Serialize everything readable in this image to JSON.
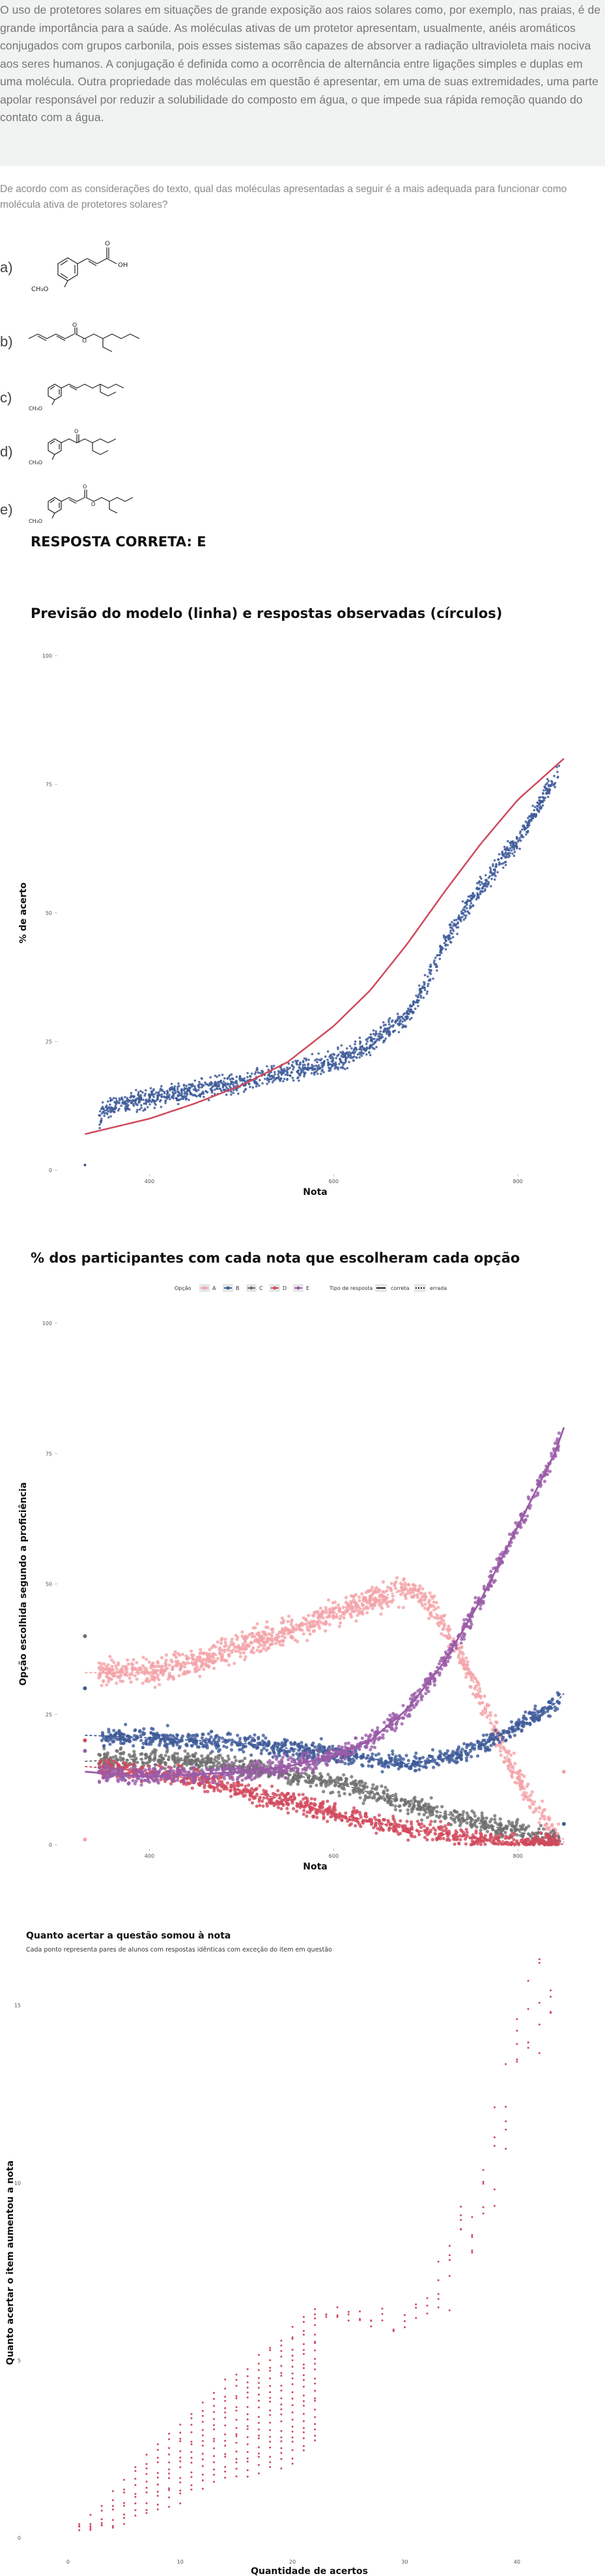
{
  "intro_text": "O uso de protetores solares em situações de grande exposição aos raios solares como, por exemplo, nas praias, é de grande importância para a saúde. As moléculas ativas de um protetor apresentam, usualmente, anéis aromáticos conjugados com grupos carbonila, pois esses sistemas são capazes de absorver a radiação ultravioleta mais nociva aos seres humanos. A conjugação é definida como a ocorrência de alternância entre ligações simples e duplas em uma molécula. Outra propriedade das moléculas em questão é apresentar, em uma de suas extremidades, uma parte apolar responsável por reduzir a solubilidade do composto em água, o que impede sua rápida remoção quando do contato com a água.",
  "question_text": "De acordo com as considerações do texto, qual das moléculas apresentadas a seguir é a mais adequada para funcionar como molécula ativa de protetores solares?",
  "options": [
    {
      "letter": "a)",
      "groups": [
        "CH₃O",
        "OH",
        "O"
      ]
    },
    {
      "letter": "b)",
      "groups": [
        "O",
        "O"
      ]
    },
    {
      "letter": "c)",
      "groups": [
        "CH₃O"
      ]
    },
    {
      "letter": "d)",
      "groups": [
        "CH₃O",
        "O"
      ]
    },
    {
      "letter": "e)",
      "groups": [
        "CH₃O",
        "O",
        "O"
      ]
    }
  ],
  "answer_label": "RESPOSTA CORRETA: E",
  "chart_data": [
    {
      "type": "scatter",
      "title": "Previsão do modelo (linha) e respostas observadas (círculos)",
      "xlabel": "Nota",
      "ylabel": "% de acerto",
      "xlim": [
        300,
        860
      ],
      "ylim": [
        0,
        100
      ],
      "x_ticks": [
        "400",
        "600",
        "800"
      ],
      "y_ticks": [
        "0",
        "25",
        "50",
        "75",
        "100"
      ],
      "series": [
        {
          "role": "model",
          "style": "line",
          "color": "#d1495b",
          "x": [
            330,
            400,
            450,
            500,
            550,
            600,
            640,
            680,
            720,
            760,
            800,
            850
          ],
          "y": [
            7,
            10,
            13,
            16.5,
            21,
            28,
            35,
            44,
            54,
            63.5,
            72,
            80
          ]
        },
        {
          "role": "observed",
          "style": "points",
          "color": "#3d5a99",
          "x": [
            330,
            350,
            400,
            450,
            500,
            550,
            600,
            640,
            680,
            700,
            720,
            740,
            760,
            780,
            800,
            820,
            840,
            850
          ],
          "y": [
            1,
            12,
            14,
            15.5,
            17,
            19,
            21,
            24.5,
            30,
            36,
            44,
            50,
            55,
            60,
            64,
            70,
            76,
            80
          ]
        }
      ]
    },
    {
      "type": "scatter",
      "title": "% dos participantes com cada nota que escolheram cada opção",
      "xlabel": "Nota",
      "ylabel": "Opção escolhida segundo a proficiência",
      "xlim": [
        300,
        860
      ],
      "ylim": [
        0,
        100
      ],
      "x_ticks": [
        "400",
        "600",
        "800"
      ],
      "y_ticks": [
        "0",
        "25",
        "50",
        "75",
        "100"
      ],
      "legend_option_title": "Opção",
      "legend_type_title": "Tipo de resposta",
      "legend_type_labels": [
        "correta",
        "errada"
      ],
      "legend_position": "top",
      "series": [
        {
          "name": "A",
          "color": "#f4a3a8",
          "x": [
            330,
            400,
            450,
            500,
            550,
            600,
            640,
            680,
            700,
            720,
            740,
            760,
            780,
            800,
            820,
            840,
            850
          ],
          "y": [
            33,
            33,
            35,
            38,
            41,
            44,
            47,
            49,
            47,
            42,
            36,
            28,
            20,
            13,
            7,
            2,
            1
          ]
        },
        {
          "name": "B",
          "color": "#3d5a99",
          "x": [
            330,
            400,
            450,
            500,
            550,
            600,
            640,
            680,
            720,
            760,
            800,
            840,
            850
          ],
          "y": [
            21,
            20.5,
            20,
            19.5,
            18.5,
            17.5,
            16.5,
            15.5,
            16.5,
            19,
            23,
            27,
            29
          ]
        },
        {
          "name": "C",
          "color": "#6e6e6e",
          "x": [
            330,
            400,
            450,
            500,
            550,
            600,
            640,
            680,
            720,
            760,
            800,
            840,
            850
          ],
          "y": [
            16,
            16.5,
            16,
            15,
            13.5,
            12,
            10,
            8,
            6,
            4,
            2.5,
            1,
            0.5
          ]
        },
        {
          "name": "D",
          "color": "#d1495b",
          "x": [
            330,
            400,
            450,
            500,
            550,
            600,
            640,
            680,
            720,
            760,
            800,
            840,
            850
          ],
          "y": [
            15,
            14,
            12.5,
            10.5,
            8.5,
            6,
            4.5,
            3,
            2,
            1,
            0.5,
            0.2,
            0.1
          ]
        },
        {
          "name": "E",
          "color": "#9a5ba8",
          "x": [
            330,
            400,
            450,
            500,
            550,
            600,
            640,
            680,
            720,
            760,
            800,
            840,
            850
          ],
          "y": [
            14,
            13,
            13.5,
            14,
            15,
            17,
            20,
            26,
            35,
            47,
            61,
            75,
            80
          ]
        }
      ]
    },
    {
      "type": "scatter",
      "title": "Quanto acertar a questão somou à nota",
      "subtitle": "Cada ponto representa pares de alunos com respostas idênticas com exceção do item em questão",
      "xlabel": "Quantidade de acertos",
      "ylabel": "Quanto acertar o item aumentou a nota",
      "xlim": [
        -2,
        45
      ],
      "ylim": [
        -0.5,
        16
      ],
      "x_ticks": [
        "0",
        "10",
        "20",
        "30",
        "40"
      ],
      "y_ticks": [
        "0",
        "5",
        "10",
        "15"
      ],
      "series": [
        {
          "color": "#d1495b",
          "x": [
            1,
            2,
            3,
            4,
            5,
            6,
            7,
            8,
            9,
            10,
            11,
            12,
            13,
            14,
            15,
            16,
            17,
            18,
            19,
            20,
            21,
            22,
            23,
            24,
            25,
            26,
            27,
            28,
            29,
            30,
            31,
            32,
            33,
            34,
            35,
            36,
            37,
            38,
            39,
            40,
            41,
            42,
            43
          ],
          "y": [
            0.6,
            1.0,
            1.3,
            1.7,
            2.0,
            2.4,
            2.7,
            3.0,
            3.3,
            3.6,
            3.9,
            4.2,
            4.5,
            4.8,
            5.0,
            5.2,
            5.5,
            5.8,
            6.0,
            6.3,
            6.6,
            6.9,
            6.2,
            6.4,
            6.2,
            6.4,
            6.1,
            6.4,
            6.1,
            6.2,
            6.3,
            6.6,
            7.0,
            7.8,
            8.6,
            9.2,
            10.0,
            10.8,
            12.0,
            13.2,
            14.2,
            15.0,
            15.6
          ]
        }
      ]
    }
  ]
}
